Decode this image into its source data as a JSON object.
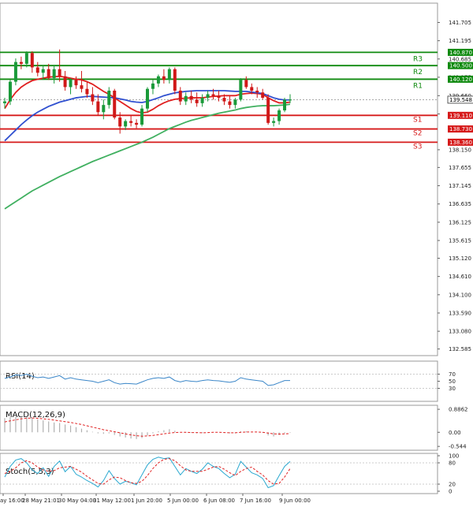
{
  "chart_data": {
    "type": "candlestick",
    "price_axis": {
      "ylim": [
        132.4,
        142.2
      ],
      "ticks": [
        141.705,
        141.195,
        140.685,
        140.175,
        139.66,
        139.15,
        138.15,
        137.655,
        137.145,
        136.635,
        136.125,
        135.615,
        135.12,
        134.61,
        134.1,
        133.59,
        133.08,
        132.585
      ]
    },
    "x_labels": [
      "ay 16:00",
      "28 May 21:01",
      "30 May 04:00",
      "31 May 12:00",
      "1 Jun 20:00",
      "5 Jun 00:00",
      "6 Jun 08:00",
      "7 Jun 16:00",
      "9 Jun 00:00"
    ],
    "current_price": "139.548",
    "levels": [
      {
        "name": "R3",
        "value": 140.87,
        "label": "140.870",
        "kind": "resistance"
      },
      {
        "name": "R2",
        "value": 140.5,
        "label": "140.500",
        "kind": "resistance"
      },
      {
        "name": "R1",
        "value": 140.12,
        "label": "140.120",
        "kind": "resistance"
      },
      {
        "name": "S1",
        "value": 139.11,
        "label": "139.110",
        "kind": "support"
      },
      {
        "name": "S2",
        "value": 138.73,
        "label": "138.730",
        "kind": "support"
      },
      {
        "name": "S3",
        "value": 138.36,
        "label": "138.360",
        "kind": "support"
      }
    ],
    "candles": [
      [
        139.45,
        139.6,
        139.3,
        139.5
      ],
      [
        139.5,
        140.1,
        139.4,
        140.05
      ],
      [
        140.05,
        140.7,
        139.95,
        140.6
      ],
      [
        140.6,
        140.75,
        140.4,
        140.55
      ],
      [
        140.55,
        140.9,
        140.45,
        140.85
      ],
      [
        140.85,
        140.9,
        140.3,
        140.45
      ],
      [
        140.45,
        140.6,
        140.2,
        140.3
      ],
      [
        140.3,
        140.5,
        140.1,
        140.4
      ],
      [
        140.4,
        140.55,
        140.1,
        140.15
      ],
      [
        140.15,
        140.5,
        140.0,
        140.4
      ],
      [
        140.4,
        140.95,
        140.05,
        140.2
      ],
      [
        140.2,
        140.35,
        139.8,
        139.9
      ],
      [
        139.9,
        140.15,
        139.7,
        140.1
      ],
      [
        140.1,
        140.2,
        139.85,
        139.95
      ],
      [
        139.95,
        140.35,
        139.75,
        139.85
      ],
      [
        139.85,
        140.05,
        139.6,
        139.7
      ],
      [
        139.7,
        139.9,
        139.4,
        139.5
      ],
      [
        139.5,
        139.7,
        139.1,
        139.2
      ],
      [
        139.2,
        139.55,
        139.0,
        139.4
      ],
      [
        139.4,
        139.9,
        139.3,
        139.8
      ],
      [
        139.8,
        139.85,
        139.0,
        139.05
      ],
      [
        139.05,
        139.2,
        138.6,
        138.8
      ],
      [
        138.8,
        139.0,
        138.7,
        138.95
      ],
      [
        138.95,
        139.1,
        138.8,
        138.9
      ],
      [
        138.9,
        139.0,
        138.75,
        138.85
      ],
      [
        138.85,
        139.4,
        138.8,
        139.3
      ],
      [
        139.3,
        139.9,
        139.2,
        139.85
      ],
      [
        139.85,
        140.1,
        139.7,
        140.0
      ],
      [
        140.0,
        140.25,
        139.9,
        140.2
      ],
      [
        140.2,
        140.4,
        140.0,
        140.1
      ],
      [
        140.1,
        140.45,
        140.0,
        140.4
      ],
      [
        140.4,
        140.45,
        139.7,
        139.8
      ],
      [
        139.8,
        139.9,
        139.4,
        139.5
      ],
      [
        139.5,
        139.75,
        139.4,
        139.65
      ],
      [
        139.65,
        139.8,
        139.45,
        139.55
      ],
      [
        139.55,
        139.75,
        139.35,
        139.45
      ],
      [
        139.45,
        139.7,
        139.35,
        139.6
      ],
      [
        139.6,
        139.8,
        139.5,
        139.7
      ],
      [
        139.7,
        139.85,
        139.55,
        139.65
      ],
      [
        139.65,
        139.8,
        139.5,
        139.6
      ],
      [
        139.6,
        139.7,
        139.4,
        139.5
      ],
      [
        139.5,
        139.65,
        139.3,
        139.4
      ],
      [
        139.4,
        139.6,
        139.3,
        139.55
      ],
      [
        139.55,
        140.15,
        139.5,
        140.1
      ],
      [
        140.1,
        140.2,
        139.85,
        139.9
      ],
      [
        139.9,
        140.0,
        139.7,
        139.8
      ],
      [
        139.8,
        139.9,
        139.6,
        139.75
      ],
      [
        139.75,
        139.85,
        139.55,
        139.6
      ],
      [
        139.6,
        139.7,
        138.85,
        138.9
      ],
      [
        138.9,
        139.05,
        138.8,
        138.95
      ],
      [
        138.95,
        139.3,
        138.85,
        139.25
      ],
      [
        139.25,
        139.6,
        139.2,
        139.55
      ],
      [
        139.55,
        139.7,
        139.45,
        139.55
      ]
    ],
    "indicators": [
      {
        "name": "RSI(14)",
        "ticks": [
          "70",
          "50",
          "30"
        ],
        "ylim": [
          0,
          100
        ],
        "values": [
          58,
          62,
          68,
          66,
          70,
          64,
          60,
          62,
          58,
          62,
          66,
          56,
          60,
          56,
          54,
          52,
          50,
          46,
          50,
          54,
          46,
          42,
          44,
          43,
          42,
          48,
          54,
          58,
          60,
          58,
          62,
          52,
          48,
          52,
          50,
          49,
          52,
          54,
          52,
          51,
          49,
          47,
          50,
          60,
          56,
          54,
          52,
          50,
          38,
          40,
          46,
          52,
          52
        ]
      },
      {
        "name": "MACD(12,26,9)",
        "ticks": [
          "0.8862",
          "0.00",
          "-0.544"
        ],
        "ylim": [
          -0.6,
          0.95
        ],
        "histogram": [
          0.55,
          0.58,
          0.6,
          0.6,
          0.58,
          0.55,
          0.5,
          0.46,
          0.42,
          0.38,
          0.36,
          0.3,
          0.26,
          0.2,
          0.14,
          0.08,
          0.02,
          -0.04,
          -0.06,
          -0.04,
          -0.1,
          -0.16,
          -0.2,
          -0.24,
          -0.26,
          -0.22,
          -0.12,
          -0.04,
          0.04,
          0.08,
          0.12,
          0.06,
          0.0,
          -0.02,
          -0.02,
          -0.04,
          -0.03,
          0.0,
          0.01,
          0.0,
          -0.02,
          -0.04,
          -0.04,
          0.04,
          0.04,
          0.02,
          0.0,
          -0.02,
          -0.12,
          -0.16,
          -0.1,
          -0.04,
          -0.02
        ],
        "signal": [
          0.4,
          0.44,
          0.48,
          0.52,
          0.54,
          0.55,
          0.54,
          0.52,
          0.5,
          0.47,
          0.44,
          0.41,
          0.38,
          0.34,
          0.3,
          0.25,
          0.2,
          0.15,
          0.1,
          0.06,
          0.02,
          -0.02,
          -0.06,
          -0.1,
          -0.13,
          -0.15,
          -0.14,
          -0.12,
          -0.09,
          -0.06,
          -0.03,
          -0.01,
          0.0,
          0.0,
          -0.01,
          -0.01,
          -0.02,
          -0.01,
          0.0,
          0.0,
          -0.01,
          -0.02,
          -0.02,
          0.0,
          0.01,
          0.01,
          0.01,
          0.0,
          -0.03,
          -0.06,
          -0.07,
          -0.06,
          -0.05
        ]
      },
      {
        "name": "Stoch(5,5,3)",
        "ticks": [
          "100",
          "80",
          "20",
          "0"
        ],
        "ylim": [
          0,
          100
        ],
        "k": [
          40,
          70,
          88,
          92,
          80,
          60,
          50,
          66,
          42,
          70,
          85,
          55,
          70,
          48,
          40,
          30,
          22,
          12,
          30,
          58,
          36,
          20,
          28,
          24,
          18,
          46,
          74,
          90,
          96,
          92,
          94,
          70,
          46,
          64,
          56,
          50,
          62,
          80,
          70,
          64,
          50,
          38,
          48,
          84,
          68,
          52,
          46,
          36,
          10,
          16,
          44,
          70,
          84
        ],
        "d": [
          50,
          56,
          66,
          80,
          86,
          80,
          68,
          60,
          56,
          58,
          66,
          68,
          70,
          62,
          54,
          42,
          32,
          22,
          20,
          32,
          40,
          38,
          30,
          24,
          22,
          28,
          44,
          64,
          80,
          90,
          92,
          86,
          72,
          60,
          56,
          56,
          56,
          62,
          68,
          70,
          62,
          52,
          44,
          56,
          64,
          68,
          56,
          46,
          30,
          20,
          22,
          40,
          64
        ]
      }
    ],
    "moving_averages": [
      {
        "color": "#e02020",
        "values": [
          139.3,
          139.55,
          139.75,
          139.9,
          140.0,
          140.08,
          140.12,
          140.15,
          140.18,
          140.19,
          140.2,
          140.18,
          140.15,
          140.12,
          140.1,
          140.05,
          139.98,
          139.88,
          139.78,
          139.7,
          139.6,
          139.5,
          139.4,
          139.3,
          139.22,
          139.18,
          139.2,
          139.28,
          139.38,
          139.46,
          139.52,
          139.56,
          139.58,
          139.59,
          139.6,
          139.6,
          139.6,
          139.62,
          139.64,
          139.65,
          139.66,
          139.66,
          139.66,
          139.7,
          139.72,
          139.73,
          139.72,
          139.7,
          139.6,
          139.52,
          139.46,
          139.46,
          139.48
        ]
      },
      {
        "color": "#3050d0",
        "values": [
          138.4,
          138.55,
          138.7,
          138.85,
          138.98,
          139.1,
          139.2,
          139.28,
          139.36,
          139.42,
          139.48,
          139.52,
          139.56,
          139.6,
          139.62,
          139.64,
          139.64,
          139.63,
          139.62,
          139.61,
          139.6,
          139.57,
          139.54,
          139.5,
          139.48,
          139.47,
          139.5,
          139.55,
          139.6,
          139.66,
          139.7,
          139.74,
          139.76,
          139.78,
          139.79,
          139.8,
          139.8,
          139.8,
          139.8,
          139.8,
          139.8,
          139.79,
          139.78,
          139.78,
          139.78,
          139.76,
          139.74,
          139.72,
          139.66,
          139.6,
          139.56,
          139.54,
          139.54
        ]
      },
      {
        "color": "#40b060",
        "values": [
          136.5,
          136.6,
          136.7,
          136.8,
          136.9,
          137.0,
          137.08,
          137.16,
          137.24,
          137.32,
          137.4,
          137.47,
          137.54,
          137.61,
          137.68,
          137.75,
          137.82,
          137.88,
          137.94,
          138.0,
          138.06,
          138.12,
          138.18,
          138.24,
          138.3,
          138.36,
          138.43,
          138.5,
          138.58,
          138.66,
          138.74,
          138.8,
          138.86,
          138.92,
          138.97,
          139.01,
          139.05,
          139.09,
          139.13,
          139.17,
          139.2,
          139.23,
          139.26,
          139.3,
          139.33,
          139.35,
          139.37,
          139.38,
          139.38,
          139.38,
          139.39,
          139.4,
          139.42
        ]
      }
    ]
  }
}
